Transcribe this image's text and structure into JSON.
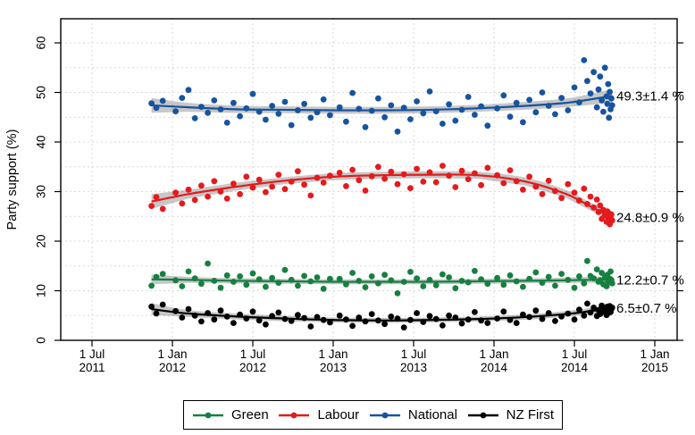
{
  "chart_data": {
    "type": "scatter",
    "title": "",
    "xlabel": "",
    "ylabel": "Party support (%)",
    "ylim": [
      0,
      64.9
    ],
    "x_domain": [
      2011.306,
      2015.139
    ],
    "grid": true,
    "legend_position": "bottom",
    "y_ticks": [
      0,
      10,
      20,
      30,
      40,
      50,
      60
    ],
    "y_grid": [
      5,
      10,
      15,
      20,
      25,
      30,
      35,
      40,
      45,
      50,
      55,
      60
    ],
    "x_ticks": [
      {
        "pos": 2011.5,
        "line1": "1 Jul",
        "line2": "2011"
      },
      {
        "pos": 2012.0,
        "line1": "1 Jan",
        "line2": "2012"
      },
      {
        "pos": 2012.5,
        "line1": "1 Jul",
        "line2": "2012"
      },
      {
        "pos": 2013.0,
        "line1": "1 Jan",
        "line2": "2013"
      },
      {
        "pos": 2013.5,
        "line1": "1 Jul",
        "line2": "2013"
      },
      {
        "pos": 2014.0,
        "line1": "1 Jan",
        "line2": "2014"
      },
      {
        "pos": 2014.5,
        "line1": "1 Jul",
        "line2": "2014"
      },
      {
        "pos": 2015.0,
        "line1": "1 Jan",
        "line2": "2015"
      }
    ],
    "band_color": "rgba(0,0,0,0.22)",
    "x": [
      2011.87,
      2011.9,
      2011.94,
      2012.02,
      2012.06,
      2012.1,
      2012.14,
      2012.18,
      2012.22,
      2012.26,
      2012.3,
      2012.34,
      2012.38,
      2012.42,
      2012.46,
      2012.5,
      2012.54,
      2012.58,
      2012.62,
      2012.66,
      2012.7,
      2012.74,
      2012.78,
      2012.82,
      2012.86,
      2012.9,
      2012.94,
      2012.98,
      2013.04,
      2013.08,
      2013.12,
      2013.16,
      2013.2,
      2013.24,
      2013.28,
      2013.32,
      2013.36,
      2013.4,
      2013.44,
      2013.48,
      2013.52,
      2013.56,
      2013.6,
      2013.64,
      2013.68,
      2013.72,
      2013.76,
      2013.8,
      2013.84,
      2013.88,
      2013.92,
      2013.96,
      2014.02,
      2014.06,
      2014.1,
      2014.14,
      2014.18,
      2014.22,
      2014.26,
      2014.3,
      2014.34,
      2014.38,
      2014.42,
      2014.46,
      2014.5,
      2014.53,
      2014.56,
      2014.58,
      2014.6,
      2014.62,
      2014.64,
      2014.65,
      2014.66,
      2014.67,
      2014.68,
      2014.69,
      2014.7,
      2014.705,
      2014.71,
      2014.715,
      2014.72,
      2014.725,
      2014.73,
      2014.735
    ],
    "series": [
      {
        "name": "National",
        "color": "#16549E",
        "annotation": "49.3±1.4 %",
        "trend": [
          [
            2011.87,
            47.4,
            1.5
          ],
          [
            2012.1,
            47.0,
            0.9
          ],
          [
            2012.4,
            46.6,
            0.75
          ],
          [
            2012.7,
            46.5,
            0.7
          ],
          [
            2013.0,
            46.4,
            0.7
          ],
          [
            2013.3,
            46.4,
            0.7
          ],
          [
            2013.6,
            46.5,
            0.7
          ],
          [
            2013.9,
            46.8,
            0.7
          ],
          [
            2014.2,
            47.3,
            0.8
          ],
          [
            2014.45,
            47.9,
            0.9
          ],
          [
            2014.6,
            48.6,
            1.1
          ],
          [
            2014.735,
            49.3,
            1.4
          ]
        ],
        "values": [
          47.8,
          46.9,
          48.3,
          46.2,
          48.9,
          50.5,
          44.8,
          47.1,
          45.9,
          48.4,
          46.6,
          43.9,
          47.9,
          45.2,
          46.8,
          49.7,
          46.1,
          44.5,
          47.3,
          45.7,
          48.1,
          43.4,
          46.4,
          47.7,
          44.9,
          46.0,
          48.6,
          45.4,
          47.0,
          44.1,
          49.9,
          46.7,
          43.0,
          46.3,
          48.8,
          45.0,
          47.4,
          42.1,
          46.9,
          44.6,
          48.2,
          45.8,
          50.2,
          46.2,
          43.7,
          47.6,
          44.3,
          46.5,
          49.1,
          45.5,
          47.2,
          43.3,
          46.8,
          49.4,
          45.1,
          47.9,
          44.0,
          48.5,
          46.0,
          50.0,
          47.3,
          45.6,
          48.9,
          46.4,
          51.0,
          48.0,
          56.5,
          52.3,
          49.8,
          54.1,
          47.0,
          50.6,
          53.2,
          48.4,
          46.1,
          55.0,
          49.2,
          47.7,
          51.7,
          44.9,
          50.1,
          46.6,
          48.8,
          47.4
        ]
      },
      {
        "name": "Labour",
        "color": "#E41A1C",
        "annotation": "24.8±0.9 %",
        "trend": [
          [
            2011.87,
            28.0,
            1.5
          ],
          [
            2012.1,
            29.5,
            0.9
          ],
          [
            2012.4,
            31.0,
            0.8
          ],
          [
            2012.7,
            32.2,
            0.7
          ],
          [
            2013.0,
            33.0,
            0.7
          ],
          [
            2013.3,
            33.3,
            0.7
          ],
          [
            2013.6,
            33.4,
            0.7
          ],
          [
            2013.9,
            33.3,
            0.7
          ],
          [
            2014.2,
            32.0,
            0.8
          ],
          [
            2014.45,
            29.5,
            0.8
          ],
          [
            2014.6,
            27.0,
            0.8
          ],
          [
            2014.735,
            24.8,
            0.9
          ]
        ],
        "values": [
          27.1,
          28.9,
          26.5,
          29.8,
          27.6,
          30.4,
          28.3,
          31.2,
          29.0,
          32.1,
          30.0,
          28.6,
          31.6,
          29.5,
          33.0,
          30.8,
          32.4,
          29.9,
          31.0,
          33.4,
          30.5,
          32.0,
          34.1,
          31.4,
          29.2,
          32.8,
          31.8,
          33.2,
          33.8,
          31.1,
          34.4,
          32.3,
          30.2,
          33.1,
          35.0,
          32.6,
          34.0,
          31.5,
          33.5,
          30.7,
          34.6,
          32.0,
          33.9,
          31.9,
          35.2,
          33.2,
          30.9,
          34.2,
          32.5,
          33.7,
          31.3,
          34.8,
          33.3,
          31.7,
          34.3,
          32.1,
          30.4,
          33.0,
          31.0,
          29.5,
          32.2,
          30.1,
          28.7,
          31.5,
          29.8,
          28.2,
          30.6,
          27.5,
          29.0,
          26.8,
          28.4,
          25.9,
          27.2,
          24.5,
          26.3,
          25.2,
          23.9,
          26.0,
          24.8,
          25.6,
          23.4,
          24.9,
          25.4,
          24.2
        ]
      },
      {
        "name": "Green",
        "color": "#168041",
        "annotation": "12.2±0.7 %",
        "trend": [
          [
            2011.87,
            12.3,
            1.0
          ],
          [
            2012.1,
            12.2,
            0.6
          ],
          [
            2012.4,
            12.0,
            0.55
          ],
          [
            2012.7,
            11.9,
            0.5
          ],
          [
            2013.0,
            11.8,
            0.5
          ],
          [
            2013.3,
            11.8,
            0.5
          ],
          [
            2013.6,
            11.8,
            0.5
          ],
          [
            2013.9,
            11.9,
            0.5
          ],
          [
            2014.2,
            12.0,
            0.5
          ],
          [
            2014.45,
            12.1,
            0.55
          ],
          [
            2014.6,
            12.2,
            0.6
          ],
          [
            2014.735,
            12.2,
            0.7
          ]
        ],
        "values": [
          11.0,
          12.8,
          13.4,
          12.1,
          10.9,
          13.9,
          12.5,
          11.4,
          15.5,
          12.0,
          10.6,
          13.1,
          11.8,
          12.9,
          11.2,
          13.5,
          12.3,
          10.8,
          12.6,
          11.6,
          14.2,
          12.2,
          11.0,
          13.0,
          11.9,
          12.7,
          10.4,
          12.4,
          12.4,
          11.3,
          13.6,
          12.0,
          10.7,
          12.9,
          11.5,
          13.2,
          12.1,
          9.5,
          11.8,
          13.8,
          12.5,
          10.9,
          12.2,
          11.1,
          13.3,
          12.7,
          10.5,
          12.0,
          11.7,
          14.0,
          12.3,
          11.4,
          12.6,
          11.2,
          13.1,
          11.9,
          10.8,
          12.4,
          13.7,
          11.6,
          12.8,
          11.0,
          13.4,
          12.2,
          10.6,
          12.9,
          11.5,
          16.0,
          13.0,
          12.5,
          14.3,
          11.8,
          12.1,
          13.6,
          11.3,
          12.7,
          10.9,
          13.2,
          12.0,
          11.7,
          12.4,
          13.9,
          12.2,
          11.5
        ]
      },
      {
        "name": "NZ First",
        "color": "#000000",
        "annotation": "6.5±0.7 %",
        "trend": [
          [
            2011.87,
            6.3,
            1.2
          ],
          [
            2012.1,
            5.4,
            0.7
          ],
          [
            2012.4,
            4.8,
            0.6
          ],
          [
            2012.7,
            4.4,
            0.55
          ],
          [
            2013.0,
            4.1,
            0.5
          ],
          [
            2013.3,
            4.0,
            0.5
          ],
          [
            2013.6,
            4.1,
            0.5
          ],
          [
            2013.9,
            4.3,
            0.5
          ],
          [
            2014.2,
            4.7,
            0.55
          ],
          [
            2014.45,
            5.3,
            0.6
          ],
          [
            2014.6,
            5.9,
            0.65
          ],
          [
            2014.735,
            6.5,
            0.7
          ]
        ],
        "values": [
          6.8,
          5.4,
          7.2,
          5.9,
          4.6,
          6.3,
          5.0,
          3.8,
          5.5,
          4.2,
          6.0,
          4.8,
          3.5,
          5.2,
          4.4,
          5.8,
          4.0,
          3.2,
          4.9,
          5.6,
          4.3,
          3.9,
          5.1,
          4.5,
          2.8,
          4.7,
          4.1,
          3.6,
          5.0,
          4.2,
          2.9,
          4.6,
          3.8,
          5.3,
          4.0,
          3.3,
          4.8,
          4.4,
          2.6,
          4.1,
          5.5,
          3.7,
          4.9,
          4.3,
          3.0,
          5.0,
          4.6,
          3.4,
          4.2,
          5.7,
          4.0,
          3.5,
          4.4,
          5.8,
          4.1,
          3.5,
          5.2,
          4.7,
          6.0,
          4.3,
          5.5,
          3.9,
          4.8,
          5.4,
          4.2,
          6.2,
          5.0,
          7.4,
          5.6,
          6.6,
          4.9,
          6.1,
          5.3,
          7.0,
          5.8,
          6.4,
          5.1,
          6.8,
          5.5,
          6.0,
          6.9,
          5.7,
          6.3,
          6.6
        ]
      }
    ],
    "legend": {
      "items": [
        "Green",
        "Labour",
        "National",
        "NZ First"
      ]
    }
  }
}
